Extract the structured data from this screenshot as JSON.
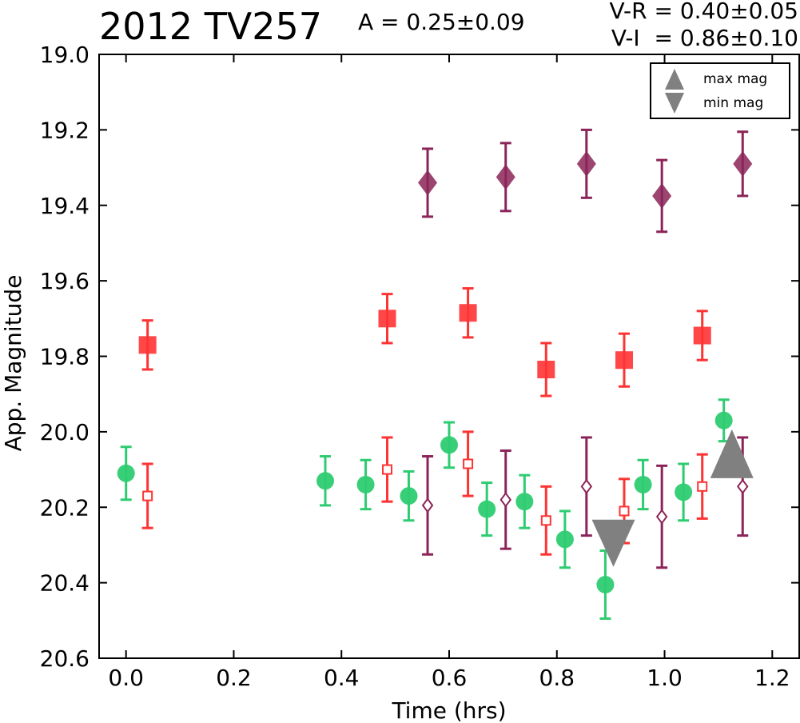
{
  "header": {
    "object_name": "2012 TV257",
    "amplitude": "A  = 0.25±0.09",
    "v_r": "V-R = 0.40±0.05",
    "v_i": "V-I  = 0.86±0.10"
  },
  "chart_data": {
    "type": "scatter",
    "title": "2012 TV257",
    "xlabel": "Time (hrs)",
    "ylabel": "App. Magnitude",
    "xlim": [
      -0.05,
      1.25
    ],
    "ylim": [
      20.6,
      19.0
    ],
    "y_inverted": true,
    "grid": false,
    "x_ticks": [
      "0.0",
      "0.2",
      "0.4",
      "0.6",
      "0.8",
      "1.0",
      "1.2"
    ],
    "y_ticks": [
      "19.0",
      "19.2",
      "19.4",
      "19.6",
      "19.8",
      "20.0",
      "20.2",
      "20.4",
      "20.6"
    ],
    "legend": {
      "position": "top-right",
      "entries": [
        "max mag",
        "min mag"
      ]
    },
    "colors": {
      "green": "#2ecc71",
      "red": "#ff3333",
      "purple": "#8b2458",
      "grey": "#808080"
    },
    "series": [
      {
        "marker": "diamond-filled",
        "color": "#8b2458",
        "x": [
          0.56,
          0.705,
          0.855,
          0.995,
          1.145
        ],
        "y": [
          19.34,
          19.325,
          19.29,
          19.375,
          19.29
        ],
        "err": [
          0.09,
          0.09,
          0.09,
          0.095,
          0.085
        ]
      },
      {
        "marker": "square-filled",
        "color": "#ff3333",
        "x": [
          0.04,
          0.485,
          0.635,
          0.78,
          0.925,
          1.07
        ],
        "y": [
          19.77,
          19.7,
          19.685,
          19.835,
          19.81,
          19.745
        ],
        "err": [
          0.065,
          0.065,
          0.065,
          0.07,
          0.07,
          0.065
        ]
      },
      {
        "marker": "circle-filled",
        "color": "#2ecc71",
        "x": [
          0.0,
          0.37,
          0.445,
          0.525,
          0.6,
          0.67,
          0.74,
          0.815,
          0.89,
          0.96,
          1.035,
          1.11
        ],
        "y": [
          20.11,
          20.13,
          20.14,
          20.17,
          20.035,
          20.205,
          20.185,
          20.285,
          20.405,
          20.14,
          20.16,
          19.97
        ],
        "err": [
          0.07,
          0.065,
          0.065,
          0.065,
          0.06,
          0.07,
          0.07,
          0.075,
          0.09,
          0.065,
          0.075,
          0.055
        ]
      },
      {
        "marker": "square-open",
        "color": "#ff3333",
        "x": [
          0.04,
          0.485,
          0.635,
          0.78,
          0.925,
          1.07
        ],
        "y": [
          20.17,
          20.1,
          20.085,
          20.235,
          20.21,
          20.145
        ],
        "err": [
          0.085,
          0.085,
          0.085,
          0.09,
          0.085,
          0.085
        ]
      },
      {
        "marker": "diamond-open",
        "color": "#8b2458",
        "x": [
          0.56,
          0.705,
          0.855,
          0.995,
          1.145
        ],
        "y": [
          20.195,
          20.18,
          20.145,
          20.225,
          20.145
        ],
        "err": [
          0.13,
          0.13,
          0.13,
          0.135,
          0.13
        ]
      },
      {
        "marker": "triangle-up",
        "color": "#808080",
        "name": "max mag",
        "x": [
          1.125
        ],
        "y": [
          20.07
        ]
      },
      {
        "marker": "triangle-down",
        "color": "#808080",
        "name": "min mag",
        "x": [
          0.905
        ],
        "y": [
          20.29
        ]
      }
    ]
  }
}
